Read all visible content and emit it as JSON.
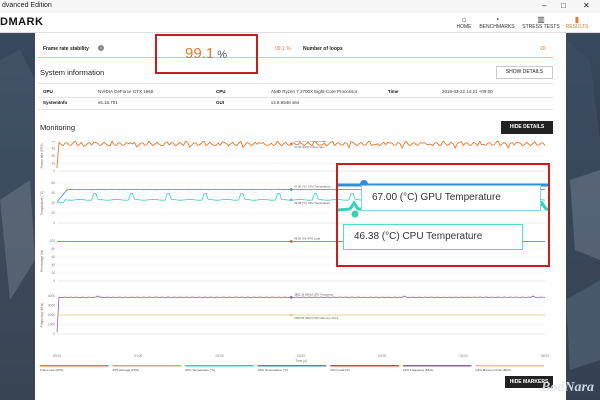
{
  "window": {
    "title": "dvanced Edition",
    "brand": "DMARK"
  },
  "nav": [
    {
      "label": "HOME",
      "icon": "home-icon",
      "glyph": "⌂",
      "active": false
    },
    {
      "label": "BENCHMARKS",
      "icon": "benchmarks-icon",
      "glyph": "◔",
      "active": false
    },
    {
      "label": "STRESS TESTS",
      "icon": "stress-tests-icon",
      "glyph": "▥",
      "active": false
    },
    {
      "label": "RESULTS",
      "icon": "results-icon",
      "glyph": "▮",
      "active": true
    }
  ],
  "summary": {
    "frame_rate_stability_label": "Frame rate stability",
    "frame_rate_stability_small": "99.1 %",
    "frame_rate_stability_value": "99.1",
    "frame_rate_stability_unit": "%",
    "loops_label": "Number of loops",
    "loops_value": "20"
  },
  "system_info": {
    "title": "System information",
    "show_details": "SHOW DETAILS",
    "rows": [
      {
        "k1": "GPU",
        "v1": "NVIDIA GeForce GTX 1660",
        "k2": "CPU",
        "v2": "AMD Ryzen 7 2700X Eight-Core Processor",
        "k3": "Time",
        "v3": "2019-03-22 14:21 +09:00"
      },
      {
        "k1": "SystemInfo",
        "v1": "v5.16.701",
        "k2": "GUI",
        "v2": "v2.8.6546 s64",
        "k3": "",
        "v3": ""
      }
    ]
  },
  "monitoring": {
    "title": "Monitoring",
    "hide_details": "HIDE DETAILS",
    "hide_markers": "HIDE MARKERS"
  },
  "chart_data": {
    "type": "line",
    "xlabel": "Time [s]",
    "x_ticks": [
      "00:00",
      "01:00",
      "02:00",
      "03:00",
      "04:00",
      "05:00",
      "06:00"
    ],
    "panels": [
      {
        "ylabel": "Frame rate (FPS)",
        "ylim": [
          0,
          40
        ],
        "y_ticks": [
          "40",
          "30",
          "20",
          "10",
          "0"
        ],
        "markers": [
          "36.00 (FPS) FPS Average",
          "37.00 (FPS) Frame rate"
        ],
        "series": [
          {
            "name": "Frame rate (FPS)",
            "color": "#e8772e",
            "level": 36,
            "pattern": "oscillating"
          }
        ]
      },
      {
        "ylabel": "Temperature (°C)",
        "ylim": [
          0,
          80
        ],
        "y_ticks": [
          "80",
          "60",
          "40",
          "20",
          "0"
        ],
        "markers": [
          "67.00 (°C) GPU Temperature",
          "46.38 (°C) CPU Temperature"
        ],
        "series": [
          {
            "name": "GPU Temperature (°C)",
            "color": "#2a93d6",
            "level": 67
          },
          {
            "name": "CPU Temperature (°C)",
            "color": "#2ed6b8",
            "level": 46.38
          }
        ]
      },
      {
        "ylabel": "Percentage (%)",
        "ylim": [
          0,
          100
        ],
        "y_ticks": [
          "100",
          "80",
          "60",
          "40",
          "20",
          "0"
        ],
        "markers": [
          "99.00 (%) GPU Load"
        ],
        "series": [
          {
            "name": "GPU Load (%)",
            "color": "#d94040",
            "level": 99
          }
        ]
      },
      {
        "ylabel": "Frequency (MHz)",
        "ylim": [
          0,
          4000
        ],
        "y_ticks": [
          "4000",
          "3000",
          "2000",
          "1000",
          "0"
        ],
        "markers": [
          "3862.16 (MHz) CPU Frequency",
          "2000.50 (MHz) GPU Memory Clock"
        ],
        "series": [
          {
            "name": "CPU Frequency (MHz)",
            "color": "#8a5cc9",
            "level": 3862.16
          },
          {
            "name": "GPU Memory Clock (MHz)",
            "color": "#e8c86a",
            "level": 2000.5
          }
        ]
      }
    ],
    "legend": [
      {
        "label": "Frame rate (FPS)",
        "color": "#e8772e"
      },
      {
        "label": "FPS Average (FPS)",
        "color": "#f0a060"
      },
      {
        "label": "CPU Temperature (°C)",
        "color": "#2ed6b8"
      },
      {
        "label": "GPU Temperature (°C)",
        "color": "#2a93d6"
      },
      {
        "label": "GPU Load (%)",
        "color": "#d94040"
      },
      {
        "label": "CPU Frequency (MHz)",
        "color": "#8a5cc9"
      },
      {
        "label": "GPU Memory Clock (MHz)",
        "color": "#e8c86a"
      }
    ]
  },
  "callouts": {
    "gpu_temp": "67.00 (°C) GPU Temperature",
    "cpu_temp": "46.38 (°C) CPU Temperature"
  },
  "watermark": "BodNara",
  "colors": {
    "accent": "#e8772e",
    "highlight": "#c91c1c"
  }
}
